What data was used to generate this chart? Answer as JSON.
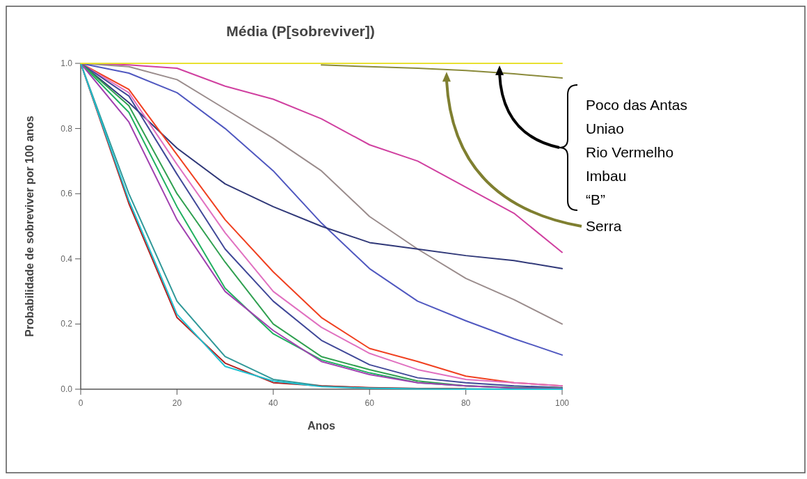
{
  "chart_data": {
    "type": "line",
    "title": "Média (P[sobreviver])",
    "xlabel": "Anos",
    "ylabel": "Probabilidade de sobreviver por 100 anos",
    "x": [
      0,
      10,
      20,
      30,
      40,
      50,
      60,
      70,
      80,
      90,
      100
    ],
    "xlim": [
      0,
      100
    ],
    "xticks": [
      0,
      20,
      40,
      60,
      80,
      100
    ],
    "ylim": [
      0,
      1
    ],
    "yticks": [
      {
        "value": 0,
        "label": "0.0"
      },
      {
        "value": 0.2,
        "label": "0.2"
      },
      {
        "value": 0.4,
        "label": "0.4"
      },
      {
        "value": 0.6,
        "label": "0.6"
      },
      {
        "value": 0.8,
        "label": "0.8"
      },
      {
        "value": 1,
        "label": "1.0"
      }
    ],
    "grid": false,
    "marker": "none",
    "line_style": "solid",
    "series": [
      {
        "color": "#e8e030",
        "values": [
          1,
          1,
          1,
          1,
          1,
          1,
          1,
          1,
          1,
          1,
          1
        ]
      },
      {
        "color": "#8a8a3a",
        "values": [
          null,
          null,
          null,
          null,
          null,
          0.995,
          0.99,
          0.985,
          0.978,
          0.968,
          0.955
        ]
      },
      {
        "color": "#d040a0",
        "values": [
          1,
          0.995,
          0.985,
          0.93,
          0.89,
          0.83,
          0.75,
          0.7,
          0.62,
          0.54,
          0.42
        ]
      },
      {
        "color": "#9a8c8c",
        "values": [
          1,
          0.99,
          0.95,
          0.86,
          0.77,
          0.67,
          0.53,
          0.43,
          0.34,
          0.275,
          0.2
        ]
      },
      {
        "color": "#5058c0",
        "values": [
          1,
          0.97,
          0.91,
          0.8,
          0.67,
          0.51,
          0.37,
          0.27,
          0.21,
          0.155,
          0.105
        ]
      },
      {
        "color": "#303878",
        "values": [
          1,
          0.88,
          0.74,
          0.63,
          0.56,
          0.5,
          0.45,
          0.43,
          0.41,
          0.395,
          0.37
        ]
      },
      {
        "color": "#f04020",
        "values": [
          1,
          0.92,
          0.72,
          0.52,
          0.36,
          0.22,
          0.125,
          0.085,
          0.04,
          0.02,
          0.01
        ]
      },
      {
        "color": "#e070c0",
        "values": [
          1,
          0.91,
          0.69,
          0.48,
          0.3,
          0.19,
          0.11,
          0.06,
          0.03,
          0.02,
          0.01
        ]
      },
      {
        "color": "#404898",
        "values": [
          1,
          0.9,
          0.66,
          0.43,
          0.27,
          0.15,
          0.075,
          0.035,
          0.02,
          0.01,
          0.005
        ]
      },
      {
        "color": "#30a050",
        "values": [
          1,
          0.87,
          0.6,
          0.39,
          0.2,
          0.1,
          0.06,
          0.025,
          0.01,
          0.005,
          0.003
        ]
      },
      {
        "color": "#20b060",
        "values": [
          1,
          0.85,
          0.56,
          0.31,
          0.17,
          0.09,
          0.05,
          0.02,
          0.01,
          0.005,
          0.003
        ]
      },
      {
        "color": "#a040b0",
        "values": [
          1,
          0.82,
          0.52,
          0.3,
          0.18,
          0.085,
          0.045,
          0.02,
          0.01,
          0.004,
          0.002
        ]
      },
      {
        "color": "#309898",
        "values": [
          1,
          0.6,
          0.27,
          0.1,
          0.03,
          0.01,
          0.004,
          0.002,
          0.001,
          0,
          0
        ]
      },
      {
        "color": "#b02020",
        "values": [
          1,
          0.57,
          0.22,
          0.08,
          0.02,
          0.01,
          0.005,
          0.002,
          0.001,
          null,
          null
        ]
      },
      {
        "color": "#20c0d0",
        "values": [
          1,
          0.58,
          0.23,
          0.07,
          0.025,
          0.008,
          0.003,
          0.001,
          0,
          0,
          0
        ]
      }
    ],
    "annotations": [
      "Poco das Antas",
      "Uniao",
      "Rio Vermelho",
      "Imbau",
      "“B”",
      "Serra"
    ]
  }
}
